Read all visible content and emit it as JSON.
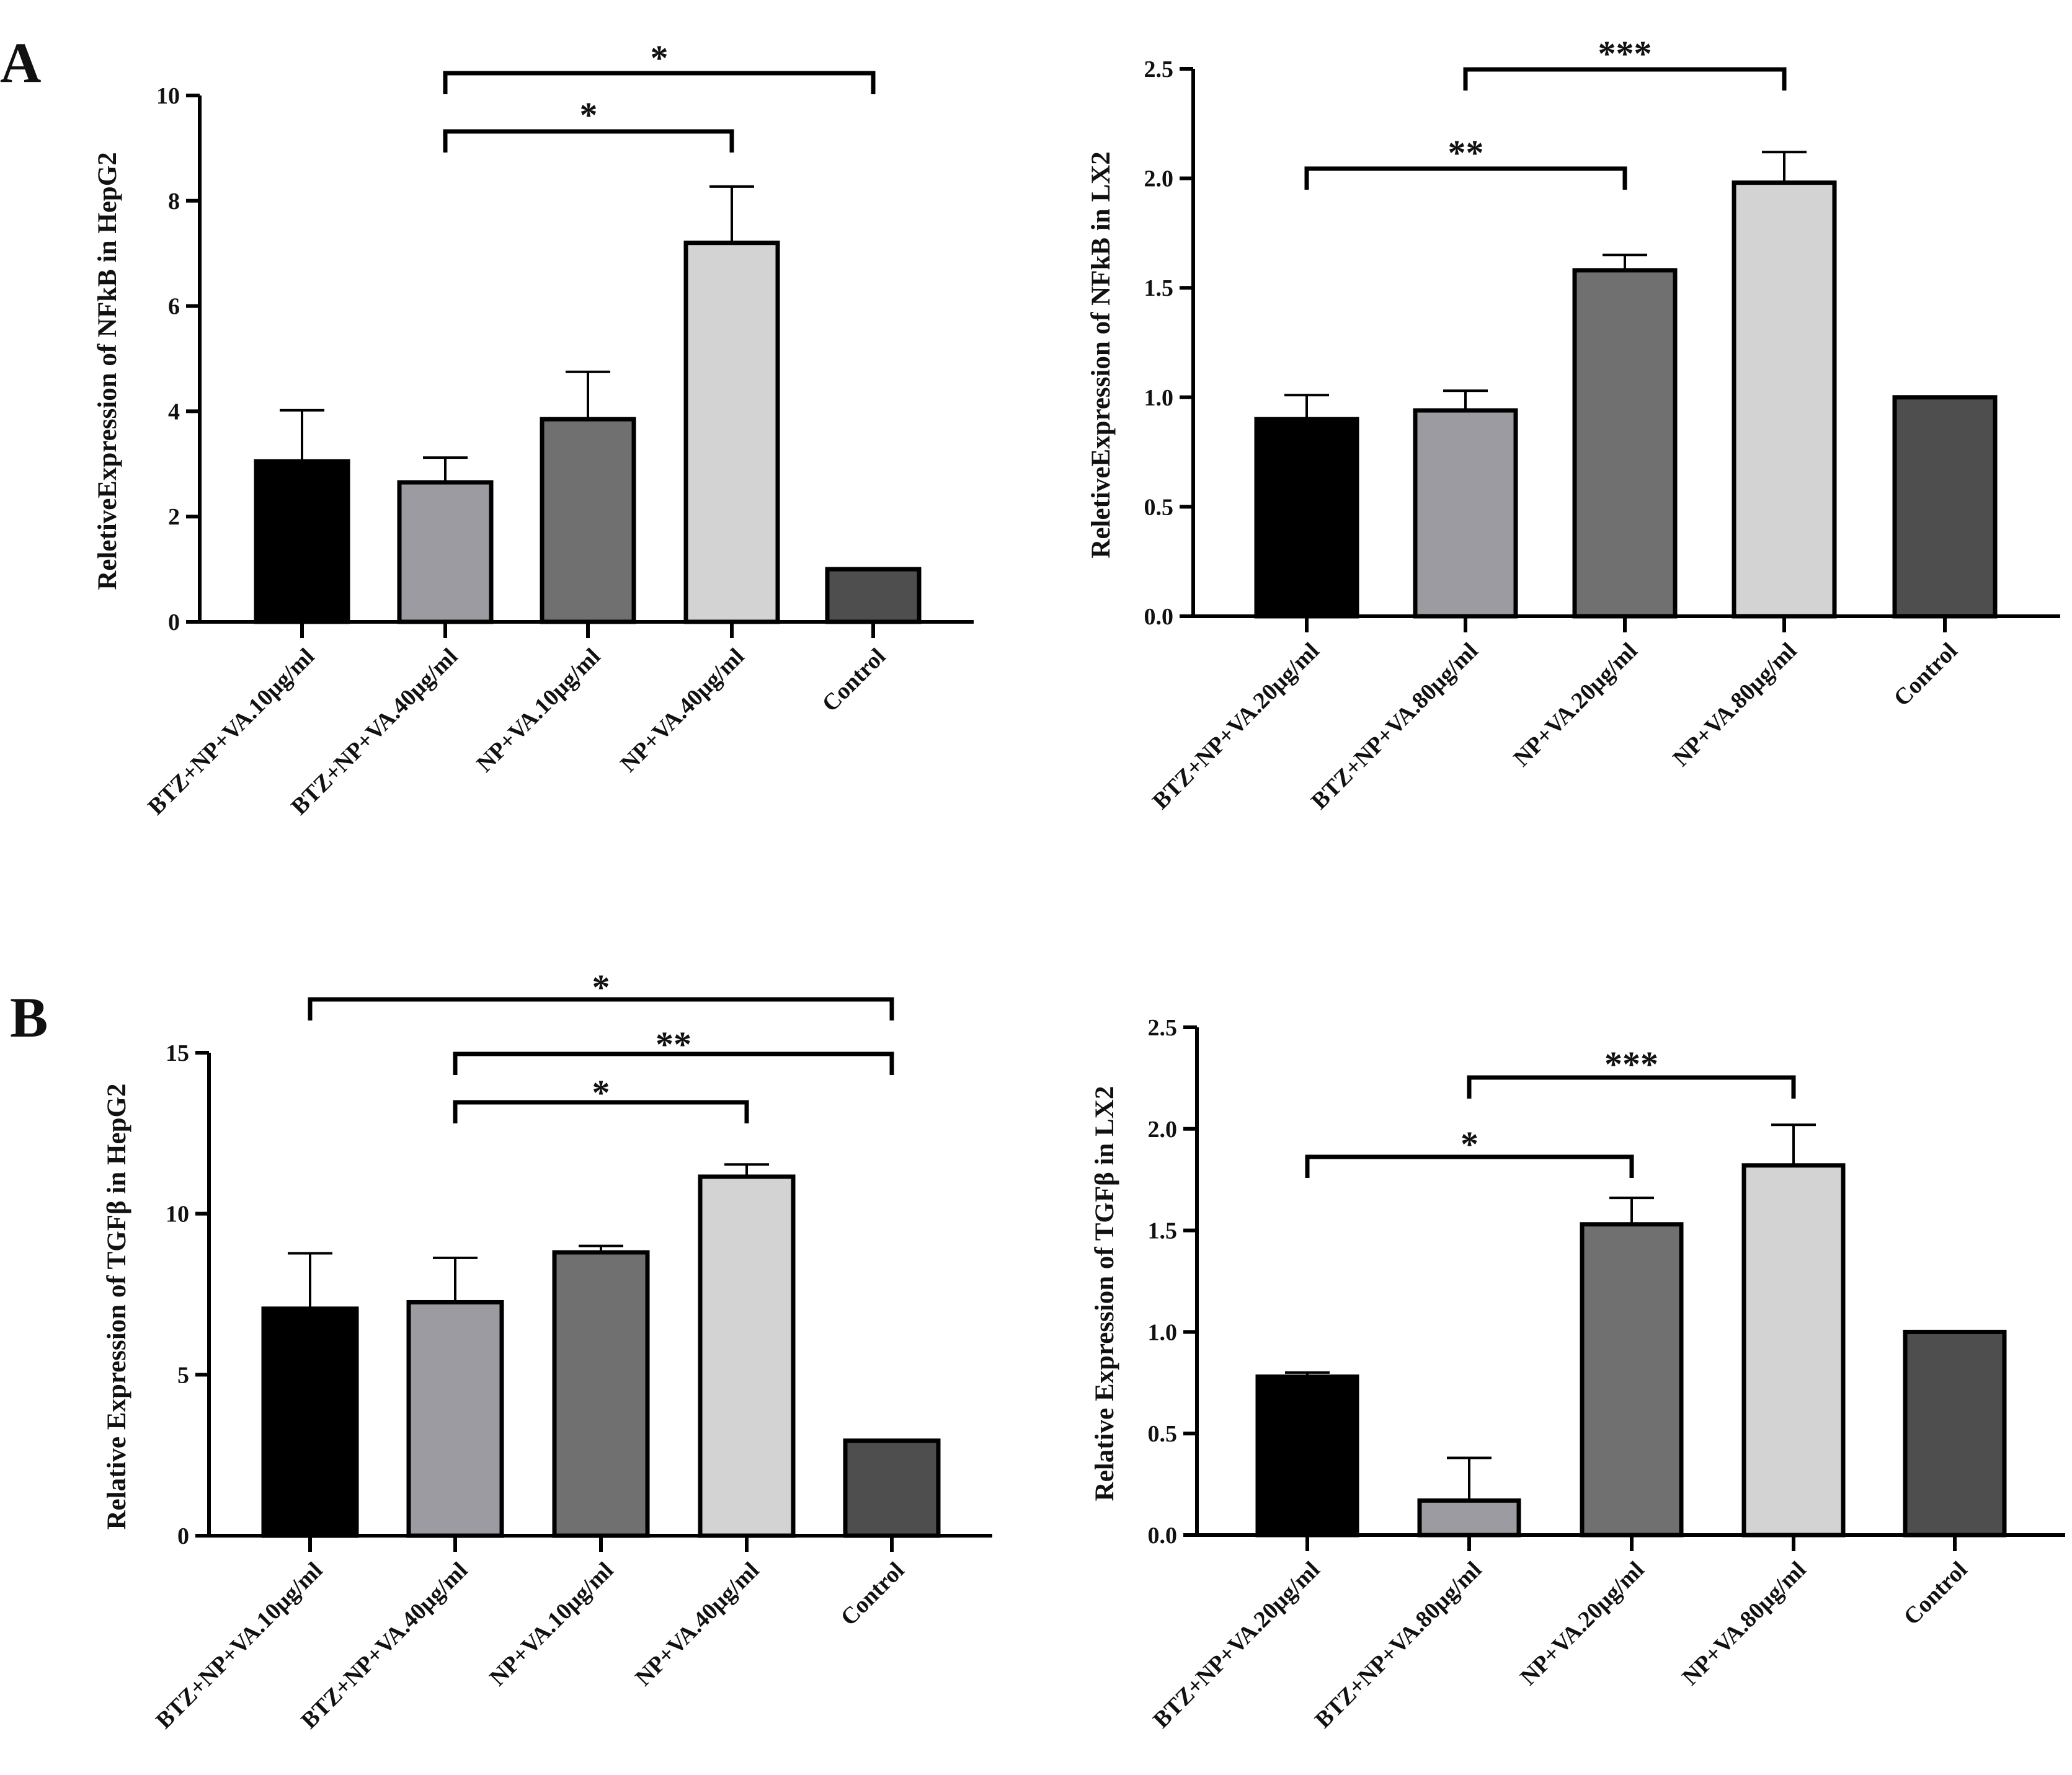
{
  "figure": {
    "panel_labels": [
      "A",
      "B"
    ]
  },
  "chart_data": [
    {
      "type": "bar",
      "panel": "A",
      "title": "",
      "ylabel": "ReletiveExpression of NFkB in HepG2",
      "ylim": [
        0,
        10
      ],
      "yticks": [
        0,
        2,
        4,
        6,
        8,
        10
      ],
      "categories": [
        "BTZ+NP+VA.10µg/ml",
        "BTZ+NP+VA.40µg/ml",
        "NP+VA.10µg/ml",
        "NP+VA.40µg/ml",
        "Control"
      ],
      "values": [
        3.05,
        2.65,
        3.85,
        7.2,
        1.0
      ],
      "errors": [
        0.97,
        0.47,
        0.9,
        1.07,
        0
      ],
      "colors": [
        "#000000",
        "#9c9ba1",
        "#707070",
        "#d3d3d3",
        "#4e4e4e"
      ],
      "significance": [
        {
          "from": 1,
          "to": 3,
          "label": "*"
        },
        {
          "from": 1,
          "to": 4,
          "label": "*"
        }
      ]
    },
    {
      "type": "bar",
      "panel": "",
      "title": "",
      "ylabel": "ReletiveExpression of NFkB in LX2",
      "ylim": [
        0,
        2.5
      ],
      "yticks": [
        "0.0",
        "0.5",
        "1.0",
        "1.5",
        "2.0",
        "2.5"
      ],
      "categories": [
        "BTZ+NP+VA.20µg/ml",
        "BTZ+NP+VA.80µg/ml",
        "NP+VA.20µg/ml",
        "NP+VA.80µg/ml",
        "Control"
      ],
      "values": [
        0.9,
        0.94,
        1.58,
        1.98,
        1.0
      ],
      "errors": [
        0.11,
        0.09,
        0.07,
        0.14,
        0
      ],
      "colors": [
        "#000000",
        "#9c9ba1",
        "#707070",
        "#d3d3d3",
        "#4e4e4e"
      ],
      "significance": [
        {
          "from": 0,
          "to": 2,
          "label": "**"
        },
        {
          "from": 1,
          "to": 3,
          "label": "***"
        }
      ]
    },
    {
      "type": "bar",
      "panel": "B",
      "title": "",
      "ylabel": "Relative Expression of  TGFβ in  HepG2",
      "ylim": [
        0,
        15
      ],
      "yticks": [
        0,
        5,
        10,
        15
      ],
      "categories": [
        "BTZ+NP+VA.10µg/ml",
        "BTZ+NP+VA.40µg/ml",
        "NP+VA.10µg/ml",
        "NP+VA.40µg/ml",
        "Control"
      ],
      "values": [
        7.05,
        7.25,
        8.8,
        11.15,
        2.95
      ],
      "errors": [
        1.72,
        1.38,
        0.2,
        0.38,
        0
      ],
      "colors": [
        "#000000",
        "#9c9ba1",
        "#707070",
        "#d3d3d3",
        "#4e4e4e"
      ],
      "significance": [
        {
          "from": 1,
          "to": 3,
          "label": "*"
        },
        {
          "from": 1,
          "to": 4,
          "label": "**"
        },
        {
          "from": 0,
          "to": 4,
          "label": "*"
        }
      ]
    },
    {
      "type": "bar",
      "panel": "",
      "title": "",
      "ylabel": "Relative Expression of  TGFβ in  LX2",
      "ylim": [
        0,
        2.5
      ],
      "yticks": [
        "0.0",
        "0.5",
        "1.0",
        "1.5",
        "2.0",
        "2.5"
      ],
      "categories": [
        "BTZ+NP+VA.20µg/ml",
        "BTZ+NP+VA.80µg/ml",
        "NP+VA.20µg/ml",
        "NP+VA.80µg/ml",
        "Control"
      ],
      "values": [
        0.78,
        0.17,
        1.53,
        1.82,
        1.0
      ],
      "errors": [
        0.02,
        0.21,
        0.13,
        0.2,
        0
      ],
      "colors": [
        "#000000",
        "#9c9ba1",
        "#707070",
        "#d3d3d3",
        "#4e4e4e"
      ],
      "significance": [
        {
          "from": 0,
          "to": 2,
          "label": "*"
        },
        {
          "from": 1,
          "to": 3,
          "label": "***"
        }
      ]
    }
  ]
}
